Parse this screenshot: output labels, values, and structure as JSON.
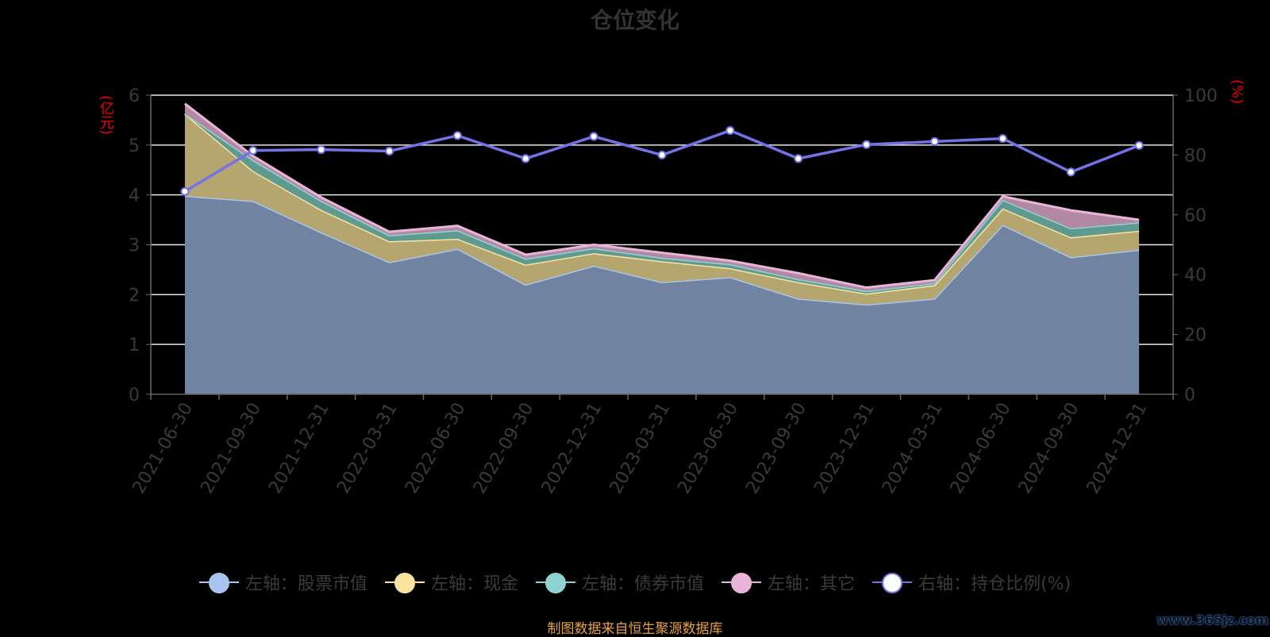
{
  "title": "仓位变化",
  "units": {
    "left": "(亿元)",
    "right": "(%)"
  },
  "source_text": "制图数据来自恒生聚源数据库",
  "watermark": "www.365jz.com",
  "chart_data": {
    "type": "area",
    "title": "仓位变化",
    "categories": [
      "2021-06-30",
      "2021-09-30",
      "2021-12-31",
      "2022-03-31",
      "2022-06-30",
      "2022-09-30",
      "2022-12-31",
      "2023-03-31",
      "2023-06-30",
      "2023-09-30",
      "2023-12-31",
      "2024-03-31",
      "2024-06-30",
      "2024-09-30",
      "2024-12-31"
    ],
    "y_left": {
      "label": "(亿元)",
      "range": [
        0,
        6
      ],
      "ticks": [
        0,
        1,
        2,
        3,
        4,
        5,
        6
      ]
    },
    "y_right": {
      "label": "(%)",
      "range": [
        0,
        100
      ],
      "ticks": [
        0,
        20,
        40,
        60,
        80,
        100
      ]
    },
    "stacked": true,
    "grid": true,
    "legend_position": "bottom",
    "series": [
      {
        "name": "左轴：股票市值",
        "axis": "left",
        "color": "#a8c4ef",
        "values": [
          3.98,
          3.88,
          3.25,
          2.65,
          2.92,
          2.2,
          2.58,
          2.25,
          2.35,
          1.92,
          1.8,
          1.92,
          3.4,
          2.75,
          2.9
        ]
      },
      {
        "name": "左轴：现金",
        "axis": "left",
        "color": "#f9e3a1",
        "values": [
          1.65,
          0.6,
          0.45,
          0.42,
          0.2,
          0.4,
          0.25,
          0.42,
          0.18,
          0.33,
          0.22,
          0.27,
          0.33,
          0.4,
          0.38
        ]
      },
      {
        "name": "左轴：债券市值",
        "axis": "left",
        "color": "#8fd3d0",
        "values": [
          0.0,
          0.22,
          0.18,
          0.12,
          0.17,
          0.12,
          0.1,
          0.07,
          0.08,
          0.06,
          0.05,
          0.04,
          0.17,
          0.18,
          0.17
        ]
      },
      {
        "name": "左轴：其它",
        "axis": "left",
        "color": "#e8b4d8",
        "values": [
          0.2,
          0.08,
          0.07,
          0.07,
          0.09,
          0.08,
          0.07,
          0.1,
          0.07,
          0.12,
          0.07,
          0.06,
          0.07,
          0.36,
          0.05
        ]
      },
      {
        "name": "右轴：持仓比例(%)",
        "axis": "right",
        "type": "line",
        "color": "#7373e8",
        "values": [
          67.8,
          81.5,
          81.8,
          81.3,
          86.5,
          78.8,
          86.2,
          80.0,
          88.2,
          78.8,
          83.5,
          84.5,
          85.5,
          74.3,
          83.2
        ]
      }
    ]
  }
}
